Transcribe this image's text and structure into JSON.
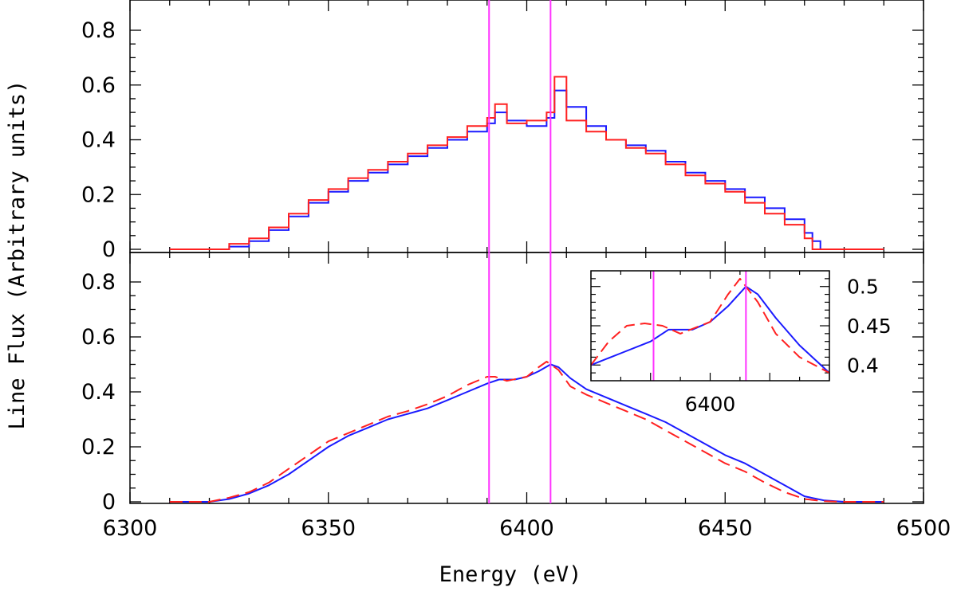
{
  "chart_data": {
    "type": "line",
    "xlabel": "Energy (eV)",
    "ylabel": "Line Flux (Arbitrary units)",
    "xlim": [
      6300,
      6500
    ],
    "x_ticks": [
      "6300",
      "6350",
      "6400",
      "6450",
      "6500"
    ],
    "vertical_lines": {
      "color": "#ff33ff",
      "x": [
        6390.5,
        6406
      ]
    },
    "colors": {
      "blue": "#1a1aff",
      "red": "#ff2020",
      "magenta": "#ff33ff"
    },
    "panels": [
      {
        "name": "top",
        "style": "step",
        "ylim": [
          0,
          0.9
        ],
        "y_ticks": [
          "0",
          "0.2",
          "0.4",
          "0.6",
          "0.8"
        ],
        "series": [
          {
            "name": "blue",
            "color": "#1a1aff",
            "x": [
              6310,
              6320,
              6325,
              6330,
              6335,
              6340,
              6345,
              6350,
              6355,
              6360,
              6365,
              6370,
              6375,
              6380,
              6385,
              6390,
              6392,
              6395,
              6400,
              6405,
              6407,
              6410,
              6415,
              6420,
              6425,
              6430,
              6435,
              6440,
              6445,
              6450,
              6455,
              6460,
              6465,
              6470,
              6472,
              6474,
              6490
            ],
            "y": [
              0,
              0,
              0.01,
              0.03,
              0.07,
              0.12,
              0.17,
              0.21,
              0.25,
              0.28,
              0.31,
              0.34,
              0.37,
              0.4,
              0.43,
              0.46,
              0.5,
              0.47,
              0.45,
              0.48,
              0.58,
              0.52,
              0.45,
              0.4,
              0.38,
              0.36,
              0.32,
              0.28,
              0.25,
              0.22,
              0.19,
              0.15,
              0.11,
              0.06,
              0.03,
              0,
              0
            ]
          },
          {
            "name": "red",
            "color": "#ff2020",
            "x": [
              6310,
              6320,
              6325,
              6330,
              6335,
              6340,
              6345,
              6350,
              6355,
              6360,
              6365,
              6370,
              6375,
              6380,
              6385,
              6390,
              6392,
              6395,
              6400,
              6405,
              6407,
              6410,
              6415,
              6420,
              6425,
              6430,
              6435,
              6440,
              6445,
              6450,
              6455,
              6460,
              6465,
              6470,
              6472,
              6490
            ],
            "y": [
              0,
              0,
              0.02,
              0.04,
              0.08,
              0.13,
              0.18,
              0.22,
              0.26,
              0.29,
              0.32,
              0.35,
              0.38,
              0.41,
              0.45,
              0.48,
              0.53,
              0.46,
              0.47,
              0.5,
              0.63,
              0.47,
              0.43,
              0.4,
              0.37,
              0.35,
              0.31,
              0.27,
              0.24,
              0.21,
              0.17,
              0.13,
              0.09,
              0.04,
              0,
              0
            ]
          }
        ]
      },
      {
        "name": "bottom",
        "style": "smooth",
        "ylim": [
          0,
          0.9
        ],
        "y_ticks": [
          "0",
          "0.2",
          "0.4",
          "0.6",
          "0.8"
        ],
        "series": [
          {
            "name": "blue",
            "color": "#1a1aff",
            "dash": "solid",
            "x": [
              6310,
              6320,
              6325,
              6330,
              6335,
              6340,
              6345,
              6350,
              6355,
              6360,
              6365,
              6370,
              6375,
              6380,
              6385,
              6390,
              6393,
              6397,
              6400,
              6403,
              6406,
              6408,
              6411,
              6415,
              6420,
              6425,
              6430,
              6435,
              6440,
              6445,
              6450,
              6455,
              6460,
              6465,
              6470,
              6475,
              6480,
              6490
            ],
            "y": [
              0,
              0,
              0.01,
              0.03,
              0.06,
              0.1,
              0.15,
              0.2,
              0.24,
              0.27,
              0.3,
              0.32,
              0.34,
              0.37,
              0.4,
              0.43,
              0.445,
              0.445,
              0.455,
              0.475,
              0.5,
              0.49,
              0.45,
              0.41,
              0.38,
              0.35,
              0.32,
              0.29,
              0.25,
              0.21,
              0.17,
              0.14,
              0.1,
              0.06,
              0.02,
              0.005,
              0,
              0
            ]
          },
          {
            "name": "red",
            "color": "#ff2020",
            "dash": "dashed",
            "x": [
              6310,
              6320,
              6325,
              6330,
              6335,
              6340,
              6345,
              6350,
              6355,
              6360,
              6365,
              6370,
              6375,
              6380,
              6385,
              6390,
              6392,
              6395,
              6400,
              6403,
              6405,
              6408,
              6411,
              6415,
              6420,
              6425,
              6430,
              6435,
              6440,
              6445,
              6450,
              6455,
              6460,
              6465,
              6470,
              6475,
              6480,
              6490
            ],
            "y": [
              0,
              0,
              0.015,
              0.035,
              0.07,
              0.12,
              0.17,
              0.22,
              0.25,
              0.28,
              0.31,
              0.33,
              0.355,
              0.385,
              0.425,
              0.455,
              0.455,
              0.44,
              0.455,
              0.49,
              0.51,
              0.48,
              0.42,
              0.39,
              0.36,
              0.33,
              0.3,
              0.26,
              0.22,
              0.18,
              0.14,
              0.11,
              0.07,
              0.035,
              0.01,
              0.002,
              0,
              0
            ]
          }
        ]
      }
    ],
    "inset": {
      "xlim": [
        6380,
        6420
      ],
      "ylim": [
        0.38,
        0.52
      ],
      "x_ticks": [
        "6400"
      ],
      "y_ticks": [
        "0.4",
        "0.45",
        "0.5"
      ],
      "vertical_lines": [
        6390.5,
        6406
      ],
      "series": [
        {
          "name": "blue",
          "color": "#1a1aff",
          "dash": "solid",
          "x": [
            6380,
            6385,
            6390,
            6393,
            6397,
            6400,
            6403,
            6406,
            6408,
            6411,
            6415,
            6420
          ],
          "y": [
            0.4,
            0.415,
            0.43,
            0.445,
            0.445,
            0.455,
            0.475,
            0.5,
            0.49,
            0.46,
            0.425,
            0.39
          ]
        },
        {
          "name": "red",
          "color": "#ff2020",
          "dash": "dashed",
          "x": [
            6380,
            6383,
            6386,
            6389,
            6392,
            6395,
            6400,
            6403,
            6405,
            6408,
            6411,
            6415,
            6420
          ],
          "y": [
            0.4,
            0.43,
            0.45,
            0.453,
            0.45,
            0.44,
            0.455,
            0.49,
            0.51,
            0.48,
            0.44,
            0.41,
            0.39
          ]
        }
      ]
    }
  }
}
